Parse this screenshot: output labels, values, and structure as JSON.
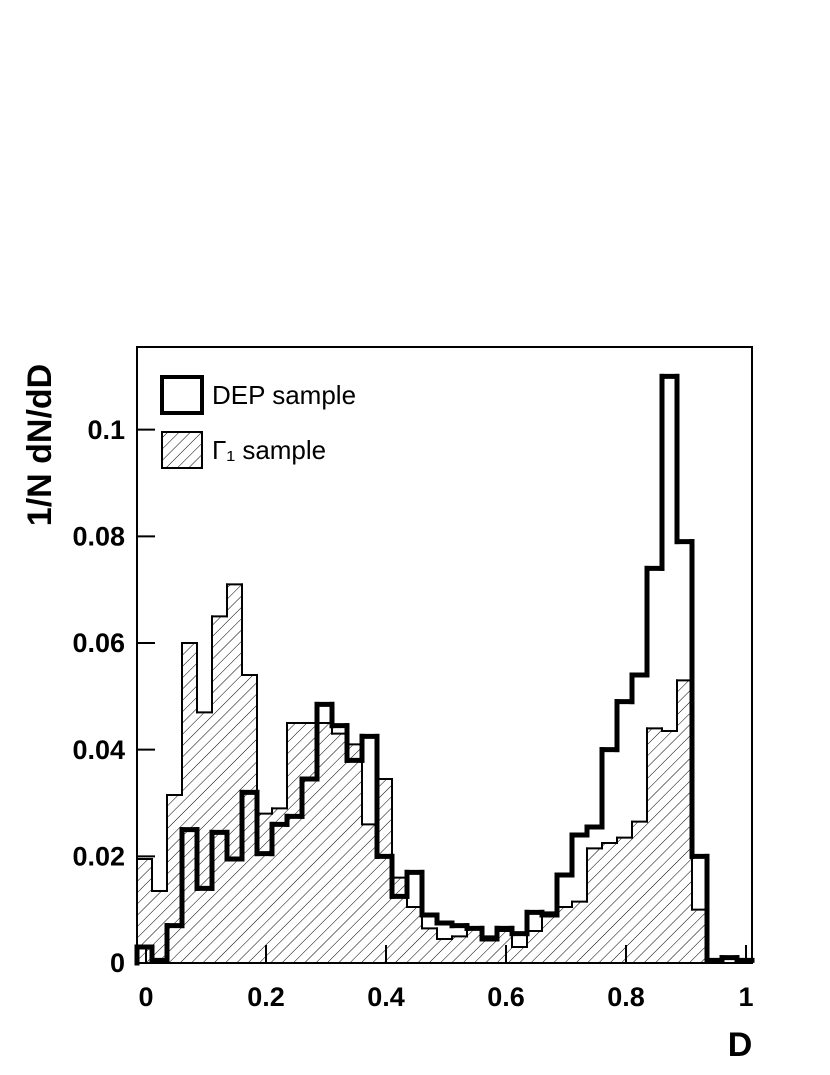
{
  "chart_data": {
    "type": "histogram",
    "xlabel": "D",
    "ylabel": "1/N dN/dD",
    "bins": [
      -0.015,
      0.01,
      0.035,
      0.06,
      0.085,
      0.11,
      0.135,
      0.16,
      0.185,
      0.21,
      0.235,
      0.26,
      0.285,
      0.31,
      0.335,
      0.36,
      0.385,
      0.41,
      0.435,
      0.46,
      0.485,
      0.51,
      0.535,
      0.56,
      0.585,
      0.61,
      0.635,
      0.66,
      0.685,
      0.71,
      0.735,
      0.76,
      0.785,
      0.81,
      0.835,
      0.86,
      0.885,
      0.91,
      0.935,
      0.96,
      0.985,
      1.01
    ],
    "series": [
      {
        "name": "Γ₁ sample",
        "color": "#000000",
        "hatched": true,
        "values": [
          0.0195,
          0.0135,
          0.0315,
          0.06,
          0.047,
          0.065,
          0.071,
          0.054,
          0.028,
          0.029,
          0.045,
          0.045,
          0.045,
          0.043,
          0.041,
          0.026,
          0.0345,
          0.016,
          0.0105,
          0.0065,
          0.0045,
          0.005,
          0.0065,
          0.005,
          0.006,
          0.003,
          0.006,
          0.0095,
          0.0105,
          0.0115,
          0.0215,
          0.0225,
          0.0235,
          0.0265,
          0.044,
          0.0435,
          0.053,
          0.01,
          0,
          0,
          0
        ]
      },
      {
        "name": "DEP sample",
        "color": "#000000",
        "hatched": false,
        "values": [
          0.003,
          0.0005,
          0.007,
          0.025,
          0.014,
          0.0245,
          0.0195,
          0.032,
          0.0205,
          0.026,
          0.0275,
          0.0345,
          0.0485,
          0.0445,
          0.038,
          0.0425,
          0.02,
          0.0125,
          0.017,
          0.009,
          0.0075,
          0.007,
          0.0065,
          0.0045,
          0.0065,
          0.0055,
          0.0095,
          0.009,
          0.0165,
          0.024,
          0.0255,
          0.04,
          0.049,
          0.054,
          0.074,
          0.11,
          0.079,
          0.02,
          0.0005,
          0.001,
          0.0005
        ]
      }
    ],
    "xlim": [
      -0.015,
      1.01
    ],
    "ylim": [
      0,
      0.1155
    ],
    "xticks": [
      0,
      0.2,
      0.4,
      0.6,
      0.8,
      1
    ],
    "yticks": [
      0,
      0.02,
      0.04,
      0.06,
      0.08,
      0.1
    ],
    "legend": "upper left"
  }
}
